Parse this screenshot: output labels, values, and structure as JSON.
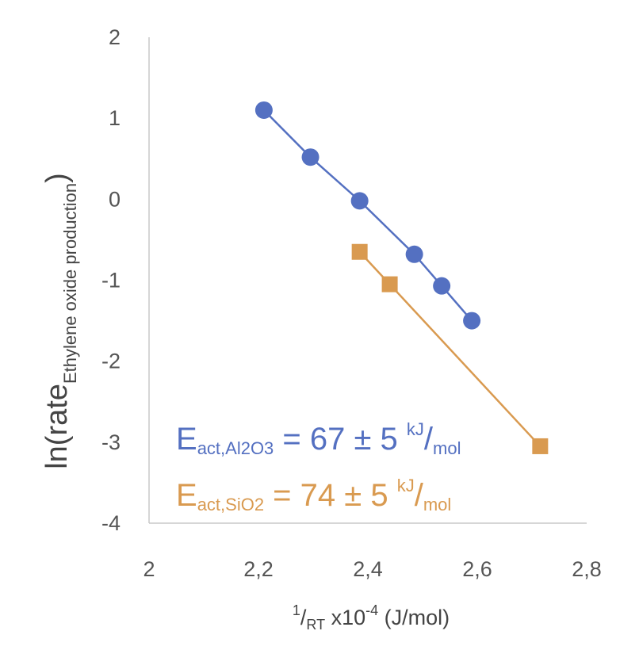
{
  "chart_data": {
    "type": "scatter",
    "xlim": [
      2,
      2.8
    ],
    "ylim": [
      -4,
      2
    ],
    "x_ticks": [
      "2",
      "2,2",
      "2,4",
      "2,6",
      "2,8"
    ],
    "y_ticks": [
      "-4",
      "-3",
      "-2",
      "-1",
      "0",
      "1",
      "2"
    ],
    "ylabel": {
      "main": "ln(rate",
      "sub": "Ethylene oxide production",
      "close": ")"
    },
    "xlabel": {
      "sup": "1",
      "slash": "/",
      "sub": "RT",
      "rest": " x10",
      "exp": "-4",
      "unit": " (J/mol)"
    },
    "grid": false,
    "legend": "none",
    "series": [
      {
        "marker": "circle",
        "color": "#5470C1",
        "x": [
          2.21,
          2.295,
          2.385,
          2.485,
          2.535,
          2.59
        ],
        "y": [
          1.1,
          0.52,
          -0.02,
          -0.68,
          -1.07,
          -1.5
        ]
      },
      {
        "marker": "square",
        "color": "#D99A50",
        "x": [
          2.385,
          2.44,
          2.715
        ],
        "y": [
          -0.65,
          -1.05,
          -3.05
        ]
      }
    ],
    "annotations": [
      {
        "main": "E",
        "sub": "act,Al2O3",
        "value": " =  67 ± 5 ",
        "unit_sup": "kJ",
        "slash": "/",
        "unit_sub": "mol",
        "color": "#5470C1"
      },
      {
        "main": "E",
        "sub": "act,SiO2",
        "value": " = 74 ± 5 ",
        "unit_sup": "kJ",
        "slash": "/",
        "unit_sub": "mol",
        "color": "#D99A50"
      }
    ]
  }
}
